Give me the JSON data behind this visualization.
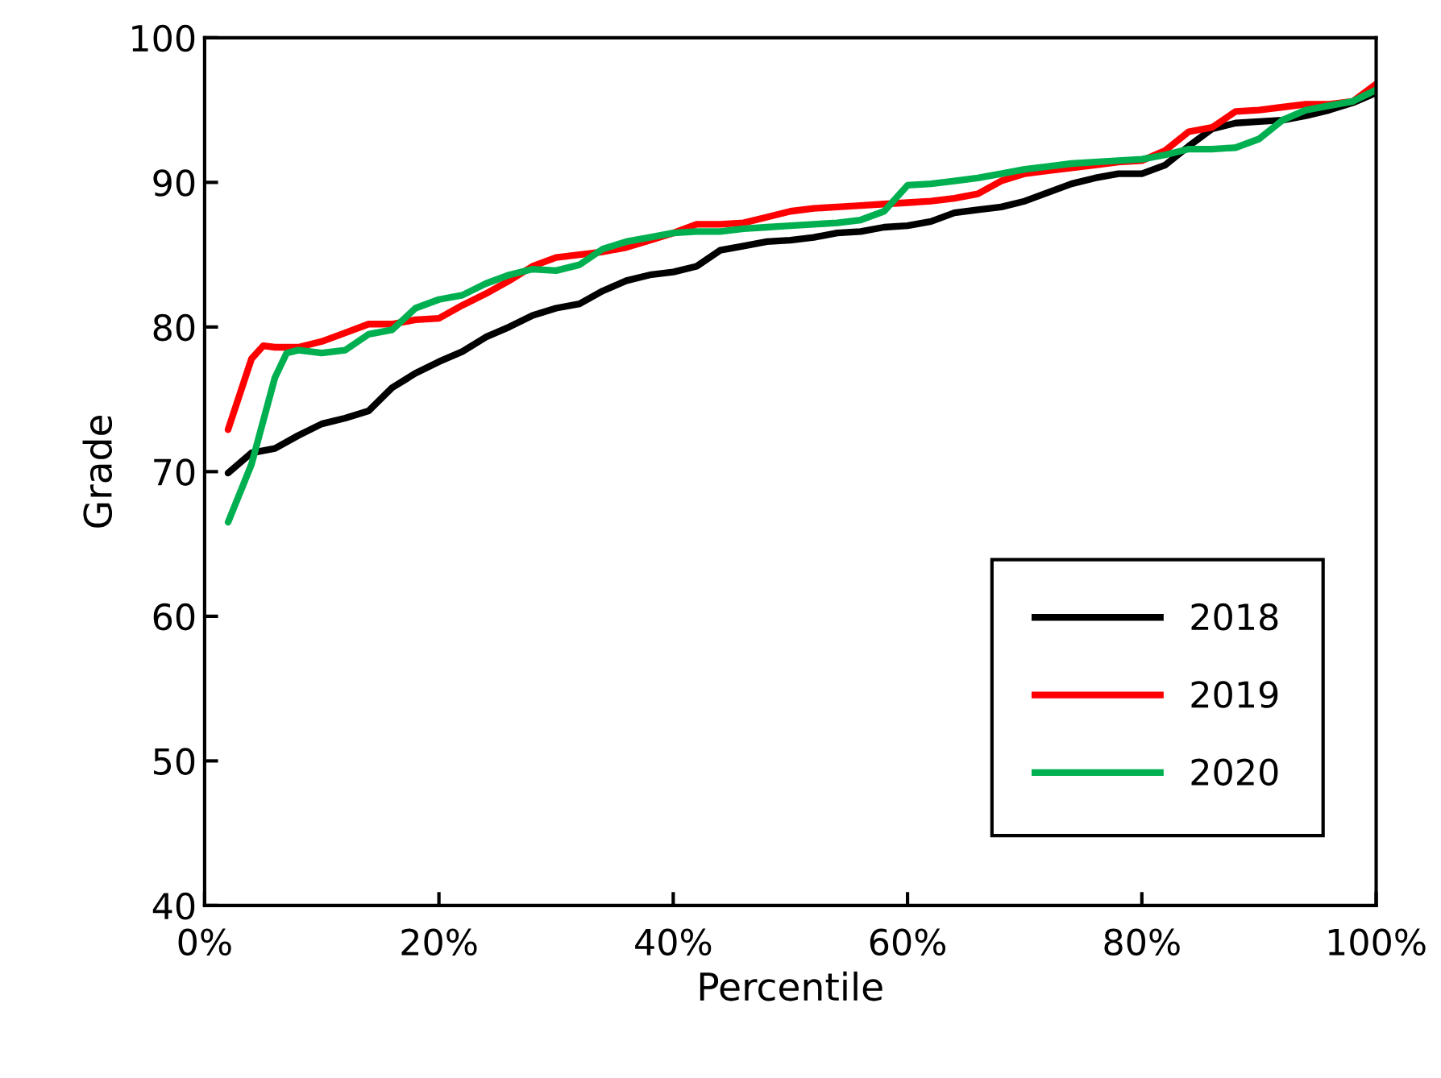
{
  "chart_data": {
    "type": "line",
    "xlabel": "Percentile",
    "ylabel": "Grade",
    "xlim": [
      0,
      100
    ],
    "ylim": [
      40,
      100
    ],
    "xticks": [
      {
        "value": 0,
        "label": "0%"
      },
      {
        "value": 20,
        "label": "20%"
      },
      {
        "value": 40,
        "label": "40%"
      },
      {
        "value": 60,
        "label": "60%"
      },
      {
        "value": 80,
        "label": "80%"
      },
      {
        "value": 100,
        "label": "100%"
      }
    ],
    "yticks": [
      40,
      50,
      60,
      70,
      80,
      90,
      100
    ],
    "grid": false,
    "legend": "bottom right",
    "marker": "none",
    "line_style": "solid",
    "series": [
      {
        "name": "2018",
        "color": "#000000",
        "x": [
          2,
          4,
          6,
          8,
          10,
          12,
          14,
          16,
          18,
          20,
          22,
          24,
          26,
          28,
          30,
          32,
          34,
          36,
          38,
          40,
          42,
          44,
          46,
          48,
          50,
          52,
          54,
          56,
          58,
          60,
          62,
          64,
          66,
          68,
          70,
          72,
          74,
          76,
          78,
          80,
          82,
          84,
          86,
          88,
          90,
          92,
          94,
          96,
          98,
          100
        ],
        "values": [
          69.9,
          71.3,
          71.6,
          72.5,
          73.3,
          73.7,
          74.2,
          75.8,
          76.8,
          77.6,
          78.3,
          79.3,
          80.0,
          80.8,
          81.3,
          81.6,
          82.5,
          83.2,
          83.6,
          83.8,
          84.2,
          85.3,
          85.6,
          85.9,
          86.0,
          86.2,
          86.5,
          86.6,
          86.9,
          87.0,
          87.3,
          87.9,
          88.1,
          88.3,
          88.7,
          89.3,
          89.9,
          90.3,
          90.6,
          90.6,
          91.2,
          92.5,
          93.7,
          94.1,
          94.2,
          94.3,
          94.6,
          95.0,
          95.5,
          96.2
        ]
      },
      {
        "name": "2019",
        "color": "#ff0000",
        "x": [
          2,
          4,
          5,
          6,
          8,
          10,
          12,
          14,
          16,
          18,
          20,
          22,
          24,
          26,
          28,
          30,
          32,
          34,
          36,
          38,
          40,
          42,
          44,
          46,
          48,
          50,
          52,
          54,
          56,
          58,
          60,
          62,
          64,
          66,
          68,
          70,
          72,
          74,
          76,
          78,
          80,
          82,
          84,
          86,
          88,
          90,
          92,
          94,
          96,
          98,
          100
        ],
        "values": [
          72.9,
          77.8,
          78.7,
          78.6,
          78.6,
          79.0,
          79.6,
          80.2,
          80.2,
          80.5,
          80.6,
          81.5,
          82.3,
          83.2,
          84.2,
          84.8,
          85.0,
          85.2,
          85.5,
          86.0,
          86.5,
          87.1,
          87.1,
          87.2,
          87.6,
          88.0,
          88.2,
          88.3,
          88.4,
          88.5,
          88.6,
          88.7,
          88.9,
          89.2,
          90.1,
          90.6,
          90.8,
          91.0,
          91.2,
          91.4,
          91.5,
          92.2,
          93.5,
          93.8,
          94.9,
          95.0,
          95.2,
          95.4,
          95.4,
          95.6,
          96.8
        ]
      },
      {
        "name": "2020",
        "color": "#00b050",
        "x": [
          2,
          4,
          6,
          7,
          8,
          10,
          12,
          14,
          16,
          18,
          20,
          22,
          24,
          26,
          28,
          30,
          32,
          34,
          36,
          38,
          40,
          42,
          44,
          46,
          48,
          50,
          52,
          54,
          56,
          58,
          60,
          62,
          64,
          66,
          68,
          70,
          72,
          74,
          76,
          78,
          80,
          82,
          84,
          86,
          88,
          90,
          92,
          94,
          96,
          98,
          100
        ],
        "values": [
          66.5,
          70.5,
          76.5,
          78.2,
          78.4,
          78.2,
          78.4,
          79.5,
          79.8,
          81.3,
          81.9,
          82.2,
          83.0,
          83.6,
          84.0,
          83.9,
          84.3,
          85.4,
          85.9,
          86.2,
          86.5,
          86.6,
          86.6,
          86.8,
          86.9,
          87.0,
          87.1,
          87.2,
          87.4,
          88.0,
          89.8,
          89.9,
          90.1,
          90.3,
          90.6,
          90.9,
          91.1,
          91.3,
          91.4,
          91.5,
          91.6,
          91.9,
          92.3,
          92.3,
          92.4,
          93.0,
          94.3,
          95.0,
          95.3,
          95.6,
          96.4
        ]
      }
    ]
  }
}
